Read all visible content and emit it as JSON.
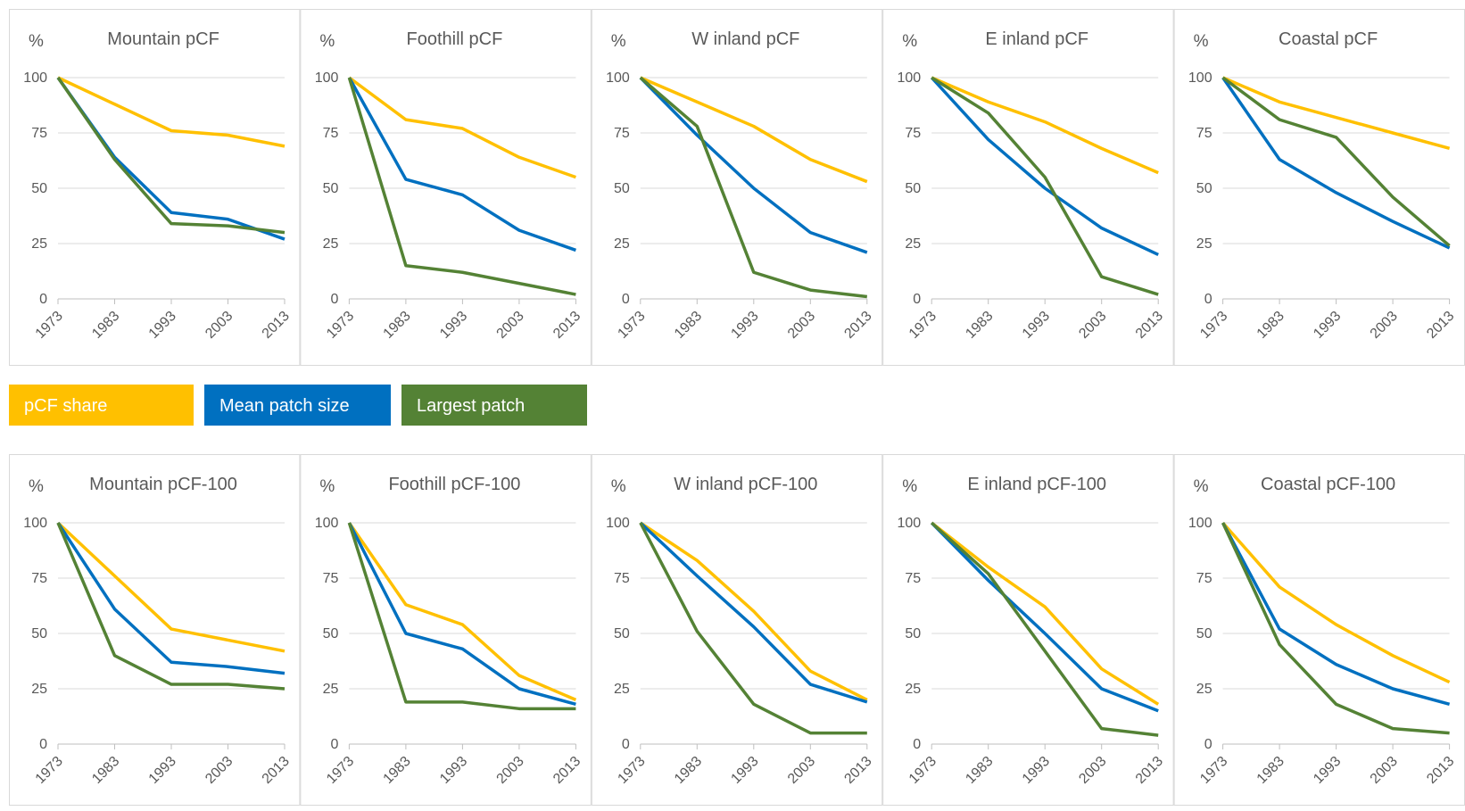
{
  "chart_data": [
    {
      "type": "line",
      "title": "Mountain  pCF",
      "ylabel": "%",
      "x": [
        1973,
        1983,
        1993,
        2003,
        2013
      ],
      "xlim": [
        1973,
        2013
      ],
      "xticks": [
        1973,
        1983,
        1993,
        2003,
        2013
      ],
      "ylim": [
        0,
        100
      ],
      "yticks": [
        0,
        25,
        50,
        75,
        100
      ],
      "grid": true,
      "series": [
        {
          "name": "pCF share",
          "color": "#ffc000",
          "values": [
            100,
            88,
            76,
            74,
            69
          ]
        },
        {
          "name": "Mean patch size",
          "color": "#0070c0",
          "values": [
            100,
            64,
            39,
            36,
            27
          ]
        },
        {
          "name": "Largest patch",
          "color": "#548235",
          "values": [
            100,
            63,
            34,
            33,
            30
          ]
        }
      ]
    },
    {
      "type": "line",
      "title": "Foothill pCF",
      "ylabel": "%",
      "x": [
        1973,
        1983,
        1993,
        2003,
        2013
      ],
      "xlim": [
        1973,
        2013
      ],
      "xticks": [
        1973,
        1983,
        1993,
        2003,
        2013
      ],
      "ylim": [
        0,
        100
      ],
      "yticks": [
        0,
        25,
        50,
        75,
        100
      ],
      "grid": true,
      "series": [
        {
          "name": "pCF share",
          "color": "#ffc000",
          "values": [
            100,
            81,
            77,
            64,
            55
          ]
        },
        {
          "name": "Mean patch size",
          "color": "#0070c0",
          "values": [
            100,
            54,
            47,
            31,
            22
          ]
        },
        {
          "name": "Largest patch",
          "color": "#548235",
          "values": [
            100,
            15,
            12,
            7,
            2
          ]
        }
      ]
    },
    {
      "type": "line",
      "title": "W inland  pCF",
      "ylabel": "%",
      "x": [
        1973,
        1983,
        1993,
        2003,
        2013
      ],
      "xlim": [
        1973,
        2013
      ],
      "xticks": [
        1973,
        1983,
        1993,
        2003,
        2013
      ],
      "ylim": [
        0,
        100
      ],
      "yticks": [
        0,
        25,
        50,
        75,
        100
      ],
      "grid": true,
      "series": [
        {
          "name": "pCF share",
          "color": "#ffc000",
          "values": [
            100,
            89,
            78,
            63,
            53
          ]
        },
        {
          "name": "Mean patch size",
          "color": "#0070c0",
          "values": [
            100,
            74,
            50,
            30,
            21
          ]
        },
        {
          "name": "Largest patch",
          "color": "#548235",
          "values": [
            100,
            78,
            12,
            4,
            1
          ]
        }
      ]
    },
    {
      "type": "line",
      "title": "E inland  pCF",
      "ylabel": "%",
      "x": [
        1973,
        1983,
        1993,
        2003,
        2013
      ],
      "xlim": [
        1973,
        2013
      ],
      "xticks": [
        1973,
        1983,
        1993,
        2003,
        2013
      ],
      "ylim": [
        0,
        100
      ],
      "yticks": [
        0,
        25,
        50,
        75,
        100
      ],
      "grid": true,
      "series": [
        {
          "name": "pCF share",
          "color": "#ffc000",
          "values": [
            100,
            89,
            80,
            68,
            57
          ]
        },
        {
          "name": "Mean patch size",
          "color": "#0070c0",
          "values": [
            100,
            72,
            50,
            32,
            20
          ]
        },
        {
          "name": "Largest patch",
          "color": "#548235",
          "values": [
            100,
            84,
            55,
            10,
            2
          ]
        }
      ]
    },
    {
      "type": "line",
      "title": "Coastal  pCF",
      "ylabel": "%",
      "x": [
        1973,
        1983,
        1993,
        2003,
        2013
      ],
      "xlim": [
        1973,
        2013
      ],
      "xticks": [
        1973,
        1983,
        1993,
        2003,
        2013
      ],
      "ylim": [
        0,
        100
      ],
      "yticks": [
        0,
        25,
        50,
        75,
        100
      ],
      "grid": true,
      "series": [
        {
          "name": "pCF share",
          "color": "#ffc000",
          "values": [
            100,
            89,
            82,
            75,
            68
          ]
        },
        {
          "name": "Mean patch size",
          "color": "#0070c0",
          "values": [
            100,
            63,
            48,
            35,
            23
          ]
        },
        {
          "name": "Largest patch",
          "color": "#548235",
          "values": [
            100,
            81,
            73,
            46,
            24
          ]
        }
      ]
    },
    {
      "type": "line",
      "title": "Mountain  pCF-100",
      "ylabel": "%",
      "x": [
        1973,
        1983,
        1993,
        2003,
        2013
      ],
      "xlim": [
        1973,
        2013
      ],
      "xticks": [
        1973,
        1983,
        1993,
        2003,
        2013
      ],
      "ylim": [
        0,
        100
      ],
      "yticks": [
        0,
        25,
        50,
        75,
        100
      ],
      "grid": true,
      "series": [
        {
          "name": "pCF share",
          "color": "#ffc000",
          "values": [
            100,
            76,
            52,
            47,
            42
          ]
        },
        {
          "name": "Mean patch size",
          "color": "#0070c0",
          "values": [
            100,
            61,
            37,
            35,
            32
          ]
        },
        {
          "name": "Largest patch",
          "color": "#548235",
          "values": [
            100,
            40,
            27,
            27,
            25
          ]
        }
      ]
    },
    {
      "type": "line",
      "title": "Foothill pCF-100",
      "ylabel": "%",
      "x": [
        1973,
        1983,
        1993,
        2003,
        2013
      ],
      "xlim": [
        1973,
        2013
      ],
      "xticks": [
        1973,
        1983,
        1993,
        2003,
        2013
      ],
      "ylim": [
        0,
        100
      ],
      "yticks": [
        0,
        25,
        50,
        75,
        100
      ],
      "grid": true,
      "series": [
        {
          "name": "pCF share",
          "color": "#ffc000",
          "values": [
            100,
            63,
            54,
            31,
            20
          ]
        },
        {
          "name": "Mean patch size",
          "color": "#0070c0",
          "values": [
            100,
            50,
            43,
            25,
            18
          ]
        },
        {
          "name": "Largest patch",
          "color": "#548235",
          "values": [
            100,
            19,
            19,
            16,
            16
          ]
        }
      ]
    },
    {
      "type": "line",
      "title": "W inland  pCF-100",
      "ylabel": "%",
      "x": [
        1973,
        1983,
        1993,
        2003,
        2013
      ],
      "xlim": [
        1973,
        2013
      ],
      "xticks": [
        1973,
        1983,
        1993,
        2003,
        2013
      ],
      "ylim": [
        0,
        100
      ],
      "yticks": [
        0,
        25,
        50,
        75,
        100
      ],
      "grid": true,
      "series": [
        {
          "name": "pCF share",
          "color": "#ffc000",
          "values": [
            100,
            83,
            60,
            33,
            20
          ]
        },
        {
          "name": "Mean patch size",
          "color": "#0070c0",
          "values": [
            100,
            76,
            53,
            27,
            19
          ]
        },
        {
          "name": "Largest patch",
          "color": "#548235",
          "values": [
            100,
            51,
            18,
            5,
            5
          ]
        }
      ]
    },
    {
      "type": "line",
      "title": "E inland  pCF-100",
      "ylabel": "%",
      "x": [
        1973,
        1983,
        1993,
        2003,
        2013
      ],
      "xlim": [
        1973,
        2013
      ],
      "xticks": [
        1973,
        1983,
        1993,
        2003,
        2013
      ],
      "ylim": [
        0,
        100
      ],
      "yticks": [
        0,
        25,
        50,
        75,
        100
      ],
      "grid": true,
      "series": [
        {
          "name": "pCF share",
          "color": "#ffc000",
          "values": [
            100,
            80,
            62,
            34,
            18
          ]
        },
        {
          "name": "Mean patch size",
          "color": "#0070c0",
          "values": [
            100,
            74,
            50,
            25,
            15
          ]
        },
        {
          "name": "Largest patch",
          "color": "#548235",
          "values": [
            100,
            77,
            42,
            7,
            4
          ]
        }
      ]
    },
    {
      "type": "line",
      "title": "Coastal  pCF-100",
      "ylabel": "%",
      "x": [
        1973,
        1983,
        1993,
        2003,
        2013
      ],
      "xlim": [
        1973,
        2013
      ],
      "xticks": [
        1973,
        1983,
        1993,
        2003,
        2013
      ],
      "ylim": [
        0,
        100
      ],
      "yticks": [
        0,
        25,
        50,
        75,
        100
      ],
      "grid": true,
      "series": [
        {
          "name": "pCF share",
          "color": "#ffc000",
          "values": [
            100,
            71,
            54,
            40,
            28
          ]
        },
        {
          "name": "Mean patch size",
          "color": "#0070c0",
          "values": [
            100,
            52,
            36,
            25,
            18
          ]
        },
        {
          "name": "Largest patch",
          "color": "#548235",
          "values": [
            100,
            45,
            18,
            7,
            5
          ]
        }
      ]
    }
  ]
}
